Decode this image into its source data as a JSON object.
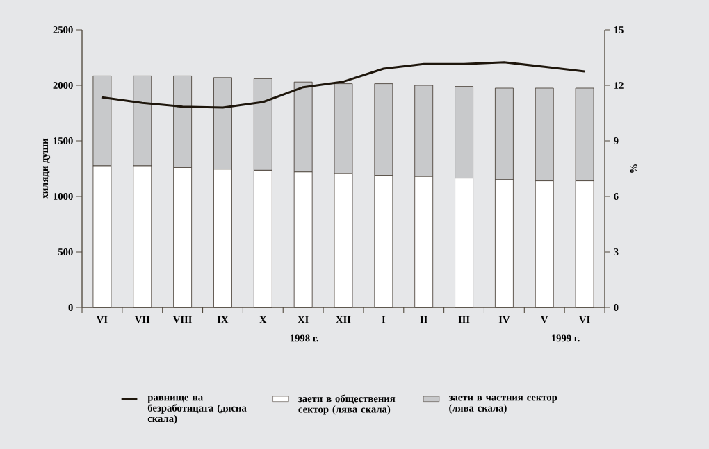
{
  "chart_data": {
    "type": "bar",
    "stacked": true,
    "categories": [
      "VI",
      "VII",
      "VIII",
      "IX",
      "X",
      "XI",
      "XII",
      "I",
      "II",
      "III",
      "IV",
      "V",
      "VI"
    ],
    "series": [
      {
        "name": "равнище на безработицата (дясна скала)",
        "type": "line",
        "axis": "y2",
        "color": "#1e160c",
        "values": [
          11.35,
          11.05,
          10.85,
          10.8,
          11.1,
          11.9,
          12.2,
          12.9,
          13.15,
          13.15,
          13.25,
          13.0,
          12.75
        ]
      },
      {
        "name": "заети в обществения сектор (лява скала)",
        "color": "#ffffff",
        "values": [
          1275,
          1275,
          1260,
          1245,
          1235,
          1220,
          1205,
          1190,
          1180,
          1165,
          1150,
          1140,
          1140
        ]
      },
      {
        "name": "заети в частния сектор (лява скала)",
        "color": "#c8c9cb",
        "values": [
          810,
          810,
          825,
          825,
          825,
          810,
          810,
          825,
          820,
          825,
          825,
          835,
          835
        ]
      }
    ],
    "ylabel": "хиляди души",
    "y2label": "%",
    "ylim": [
      0,
      2500
    ],
    "yticks": [
      0,
      500,
      1000,
      1500,
      2000,
      2500
    ],
    "y2lim": [
      0,
      15
    ],
    "y2ticks": [
      0,
      3,
      6,
      9,
      12,
      15
    ],
    "annotations": [
      "1998 г.",
      "1999 г."
    ],
    "legend": "bottom",
    "grid": false
  }
}
